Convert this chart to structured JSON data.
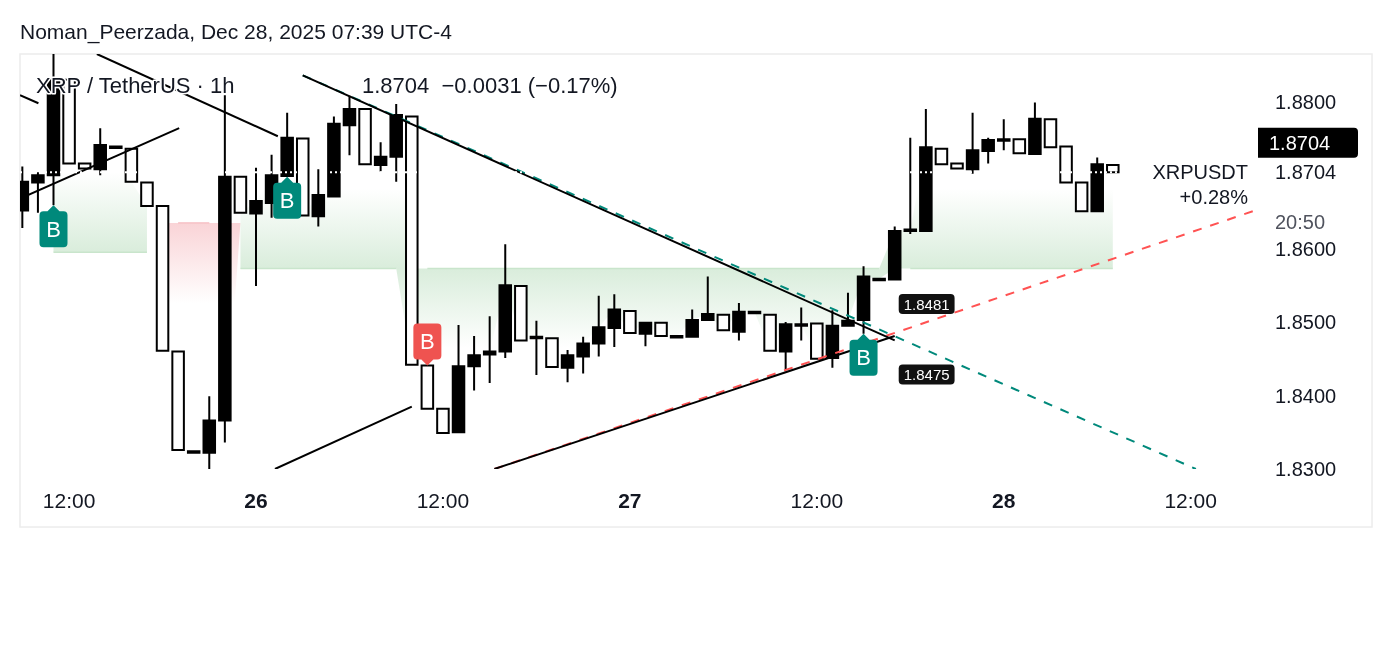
{
  "chart_data": {
    "type": "candlestick",
    "title": "XRP / TetherUS · 1h",
    "subtitle": "1.8704  −0.0031 (−0.17%)",
    "annotations": [
      "Noman_Peerzada, Dec 28, 2025 07:39 UTC-4",
      "XRPUSDT",
      "+0.28%",
      "20:50"
    ],
    "color": "#000000",
    "x": [
      "2025-12-25T09:00",
      "2025-12-25T10:00",
      "2025-12-25T11:00",
      "2025-12-25T12:00",
      "2025-12-25T13:00",
      "2025-12-25T14:00",
      "2025-12-25T15:00",
      "2025-12-25T16:00",
      "2025-12-25T17:00",
      "2025-12-25T18:00",
      "2025-12-25T19:00",
      "2025-12-25T20:00",
      "2025-12-25T21:00",
      "2025-12-25T22:00",
      "2025-12-25T23:00",
      "2025-12-26T00:00",
      "2025-12-26T01:00",
      "2025-12-26T02:00",
      "2025-12-26T03:00",
      "2025-12-26T04:00",
      "2025-12-26T05:00",
      "2025-12-26T06:00",
      "2025-12-26T07:00",
      "2025-12-26T08:00",
      "2025-12-26T09:00",
      "2025-12-26T10:00",
      "2025-12-26T11:00",
      "2025-12-26T12:00",
      "2025-12-26T13:00",
      "2025-12-26T14:00",
      "2025-12-26T15:00",
      "2025-12-26T16:00",
      "2025-12-26T17:00",
      "2025-12-26T18:00",
      "2025-12-26T19:00",
      "2025-12-26T20:00",
      "2025-12-26T21:00",
      "2025-12-26T22:00",
      "2025-12-26T23:00",
      "2025-12-27T00:00",
      "2025-12-27T01:00",
      "2025-12-27T02:00",
      "2025-12-27T03:00",
      "2025-12-27T04:00",
      "2025-12-27T05:00",
      "2025-12-27T06:00",
      "2025-12-27T07:00",
      "2025-12-27T08:00",
      "2025-12-27T09:00",
      "2025-12-27T10:00",
      "2025-12-27T11:00",
      "2025-12-27T12:00",
      "2025-12-27T13:00",
      "2025-12-27T14:00",
      "2025-12-27T15:00",
      "2025-12-27T16:00",
      "2025-12-27T17:00",
      "2025-12-27T18:00",
      "2025-12-27T19:00",
      "2025-12-27T20:00",
      "2025-12-27T21:00",
      "2025-12-27T22:00",
      "2025-12-27T23:00",
      "2025-12-28T00:00",
      "2025-12-28T01:00",
      "2025-12-28T02:00",
      "2025-12-28T03:00",
      "2025-12-28T04:00",
      "2025-12-28T05:00",
      "2025-12-28T06:00",
      "2025-12-28T07:00"
    ],
    "ohlc": [
      [
        1.8652,
        1.8712,
        1.8628,
        1.8691
      ],
      [
        1.869,
        1.8704,
        1.8649,
        1.87
      ],
      [
        1.87,
        1.8865,
        1.8659,
        1.8831
      ],
      [
        1.883,
        1.8831,
        1.8716,
        1.8716
      ],
      [
        1.8716,
        1.8716,
        1.8709,
        1.8709
      ],
      [
        1.8708,
        1.8764,
        1.87,
        1.8741
      ],
      [
        1.8738,
        1.874,
        1.8738,
        1.8739
      ],
      [
        1.8736,
        1.8736,
        1.8691,
        1.8691
      ],
      [
        1.869,
        1.869,
        1.8658,
        1.8658
      ],
      [
        1.8658,
        1.8658,
        1.8461,
        1.8461
      ],
      [
        1.846,
        1.846,
        1.8326,
        1.8326
      ],
      [
        1.8323,
        1.8324,
        1.8323,
        1.8324
      ],
      [
        1.8322,
        1.8399,
        1.83,
        1.8366
      ],
      [
        1.8366,
        1.8809,
        1.8336,
        1.8698
      ],
      [
        1.8698,
        1.8698,
        1.8649,
        1.8649
      ],
      [
        1.8648,
        1.871,
        1.8549,
        1.8665
      ],
      [
        1.8662,
        1.8728,
        1.8642,
        1.87
      ],
      [
        1.8699,
        1.8785,
        1.8698,
        1.8751
      ],
      [
        1.875,
        1.875,
        1.8645,
        1.8645
      ],
      [
        1.8644,
        1.8708,
        1.863,
        1.8673
      ],
      [
        1.8671,
        1.878,
        1.8671,
        1.877
      ],
      [
        1.8768,
        1.8808,
        1.8727,
        1.879
      ],
      [
        1.879,
        1.879,
        1.8715,
        1.8715
      ],
      [
        1.8714,
        1.8745,
        1.8705,
        1.8725
      ],
      [
        1.8725,
        1.8797,
        1.8691,
        1.8782
      ],
      [
        1.878,
        1.878,
        1.8442,
        1.8442
      ],
      [
        1.8441,
        1.8441,
        1.8382,
        1.8382
      ],
      [
        1.8382,
        1.8382,
        1.8349,
        1.8349
      ],
      [
        1.835,
        1.8496,
        1.835,
        1.844
      ],
      [
        1.844,
        1.8481,
        1.8407,
        1.8455
      ],
      [
        1.8456,
        1.8508,
        1.8417,
        1.846
      ],
      [
        1.846,
        1.8606,
        1.8451,
        1.855
      ],
      [
        1.8549,
        1.8549,
        1.8475,
        1.8475
      ],
      [
        1.8479,
        1.8502,
        1.8428,
        1.848
      ],
      [
        1.8478,
        1.8478,
        1.8439,
        1.8439
      ],
      [
        1.8438,
        1.8462,
        1.8418,
        1.8455
      ],
      [
        1.8453,
        1.848,
        1.843,
        1.8471
      ],
      [
        1.8471,
        1.8536,
        1.8453,
        1.8493
      ],
      [
        1.8492,
        1.8538,
        1.8466,
        1.8517
      ],
      [
        1.8515,
        1.8515,
        1.8485,
        1.8485
      ],
      [
        1.8484,
        1.8499,
        1.8467,
        1.8499
      ],
      [
        1.8499,
        1.8499,
        1.8481,
        1.8481
      ],
      [
        1.848,
        1.8481,
        1.848,
        1.8481
      ],
      [
        1.848,
        1.8517,
        1.848,
        1.8503
      ],
      [
        1.8503,
        1.8562,
        1.8503,
        1.8511
      ],
      [
        1.851,
        1.851,
        1.8489,
        1.8489
      ],
      [
        1.8487,
        1.8526,
        1.8475,
        1.8514
      ],
      [
        1.8513,
        1.8514,
        1.8513,
        1.8514
      ],
      [
        1.851,
        1.851,
        1.8461,
        1.8461
      ],
      [
        1.846,
        1.85,
        1.8435,
        1.8497
      ],
      [
        1.8496,
        1.852,
        1.8475,
        1.8497
      ],
      [
        1.8498,
        1.8498,
        1.845,
        1.845
      ],
      [
        1.8451,
        1.8516,
        1.8438,
        1.8495
      ],
      [
        1.8495,
        1.854,
        1.8495,
        1.8502
      ],
      [
        1.8503,
        1.8576,
        1.8484,
        1.8562
      ],
      [
        1.8558,
        1.8559,
        1.8558,
        1.8559
      ],
      [
        1.8558,
        1.863,
        1.8558,
        1.8624
      ],
      [
        1.8625,
        1.8751,
        1.862,
        1.8626
      ],
      [
        1.8624,
        1.879,
        1.8624,
        1.8738
      ],
      [
        1.8736,
        1.8736,
        1.8715,
        1.8715
      ],
      [
        1.8716,
        1.8716,
        1.8709,
        1.8709
      ],
      [
        1.8708,
        1.8785,
        1.8702,
        1.8734
      ],
      [
        1.8733,
        1.8751,
        1.8716,
        1.8748
      ],
      [
        1.8748,
        1.8776,
        1.8734,
        1.8749
      ],
      [
        1.8749,
        1.8749,
        1.873,
        1.873
      ],
      [
        1.8729,
        1.8799,
        1.8729,
        1.8777
      ],
      [
        1.8776,
        1.8776,
        1.8738,
        1.8738
      ],
      [
        1.8739,
        1.8739,
        1.869,
        1.869
      ],
      [
        1.869,
        1.869,
        1.8651,
        1.8651
      ],
      [
        1.8651,
        1.8724,
        1.8651,
        1.8715
      ],
      [
        1.8714,
        1.8715,
        1.8704,
        1.8704
      ]
    ],
    "xlim": [
      "2025-12-25T08:51",
      "2025-12-28T16:00"
    ],
    "xticks": [
      {
        "value": "2025-12-25T12:00",
        "label": "12:00"
      },
      {
        "value": "2025-12-26T00:00",
        "label": "26"
      },
      {
        "value": "2025-12-26T12:00",
        "label": "12:00"
      },
      {
        "value": "2025-12-27T00:00",
        "label": "27"
      },
      {
        "value": "2025-12-27T12:00",
        "label": "12:00"
      },
      {
        "value": "2025-12-28T00:00",
        "label": "28"
      },
      {
        "value": "2025-12-28T12:00",
        "label": "12:00"
      }
    ],
    "ylim": [
      1.83,
      1.8865
    ],
    "yticks": [
      {
        "value": 1.88,
        "label": "1.8800"
      },
      {
        "value": 1.8704,
        "label": "1.8704"
      },
      {
        "value": 1.86,
        "label": "1.8600"
      },
      {
        "value": 1.85,
        "label": "1.8500"
      },
      {
        "value": 1.84,
        "label": "1.8400"
      },
      {
        "value": 1.83,
        "label": "1.8300"
      }
    ],
    "ref_lines": [
      {
        "axis": "y",
        "value": 1.8704,
        "label": "1.8704",
        "color": "#ffffff",
        "line_style": "dotted"
      }
    ],
    "series": [
      {
        "type": "line",
        "color": "#c9e5cc",
        "x": [
          "2025-12-25T11:00",
          "2025-12-25T12:00",
          "2025-12-25T13:00",
          "2025-12-25T14:00",
          "2025-12-25T15:00",
          "2025-12-25T16:00",
          "2025-12-25T17:00"
        ],
        "values": [
          1.8595,
          1.8595,
          1.8595,
          1.8595,
          1.8595,
          1.8595,
          1.8595
        ],
        "lower": [
          1.8595,
          1.8595,
          1.8595,
          1.8595,
          1.8595,
          1.8595,
          1.8595
        ],
        "upper": [
          1.8831,
          1.8716,
          1.8709,
          1.8741,
          1.8739,
          1.8691,
          1.8658
        ]
      },
      {
        "type": "line",
        "color": "#f7c1c5",
        "x": [
          "2025-12-25T18:00",
          "2025-12-25T19:00",
          "2025-12-25T20:00",
          "2025-12-25T21:00",
          "2025-12-25T22:00",
          "2025-12-25T23:00"
        ],
        "values": [
          null,
          1.8635,
          1.8635,
          1.8635,
          null,
          null
        ],
        "lower": [
          1.8461,
          1.8326,
          1.8323,
          1.83,
          1.8336,
          1.8635
        ],
        "upper": [
          1.8635,
          1.8635,
          1.8635,
          1.8635,
          1.8635,
          1.8635
        ]
      },
      {
        "type": "line",
        "color": "#c9e5cc",
        "x": [
          "2025-12-25T23:00",
          "2025-12-26T00:00",
          "2025-12-26T01:00",
          "2025-12-26T02:00",
          "2025-12-26T03:00",
          "2025-12-26T04:00",
          "2025-12-26T05:00",
          "2025-12-26T06:00",
          "2025-12-26T07:00",
          "2025-12-26T08:00",
          "2025-12-26T09:00",
          "2025-12-26T10:00",
          "2025-12-26T11:00",
          "2025-12-26T12:00",
          "2025-12-26T13:00",
          "2025-12-26T14:00",
          "2025-12-26T15:00",
          "2025-12-26T16:00",
          "2025-12-26T17:00",
          "2025-12-26T18:00",
          "2025-12-26T19:00",
          "2025-12-26T20:00",
          "2025-12-26T21:00",
          "2025-12-26T22:00",
          "2025-12-26T23:00",
          "2025-12-27T00:00",
          "2025-12-27T01:00",
          "2025-12-27T02:00",
          "2025-12-27T03:00",
          "2025-12-27T04:00",
          "2025-12-27T05:00",
          "2025-12-27T06:00",
          "2025-12-27T07:00",
          "2025-12-27T08:00",
          "2025-12-27T09:00",
          "2025-12-27T10:00",
          "2025-12-27T11:00",
          "2025-12-27T12:00",
          "2025-12-27T13:00",
          "2025-12-27T14:00",
          "2025-12-27T15:00",
          "2025-12-27T16:00",
          "2025-12-27T17:00",
          "2025-12-27T18:00",
          "2025-12-27T19:00",
          "2025-12-27T20:00",
          "2025-12-27T21:00",
          "2025-12-27T22:00",
          "2025-12-27T23:00",
          "2025-12-28T00:00",
          "2025-12-28T01:00",
          "2025-12-28T02:00",
          "2025-12-28T03:00",
          "2025-12-28T04:00",
          "2025-12-28T05:00",
          "2025-12-28T06:00",
          "2025-12-28T07:00"
        ],
        "values": [
          1.8573,
          1.8573,
          1.8573,
          1.8573,
          1.8573,
          1.8573,
          1.8573,
          1.8573,
          1.8573,
          1.8573,
          1.8573,
          null,
          1.8573,
          1.8573,
          1.8573,
          1.8573,
          1.8573,
          1.8573,
          1.8573,
          1.8573,
          1.8573,
          1.8573,
          1.8573,
          1.8573,
          1.8573,
          1.8573,
          1.8573,
          1.8573,
          1.8573,
          1.8573,
          1.8573,
          1.8573,
          1.8573,
          1.8573,
          1.8573,
          1.8573,
          1.8573,
          1.8573,
          1.8573,
          1.8573,
          1.8573,
          1.8573,
          null,
          1.8573,
          1.8573,
          1.8573,
          1.8573,
          1.8573,
          1.8573,
          1.8573,
          1.8573,
          1.8573,
          1.8573,
          1.8573,
          1.8573,
          1.8573,
          1.8573
        ],
        "lower": [
          1.8573,
          1.8573,
          1.8573,
          1.8573,
          1.8573,
          1.8573,
          1.8573,
          1.8573,
          1.8573,
          1.8573,
          1.8573,
          1.8442,
          1.8382,
          1.8349,
          1.844,
          1.8455,
          1.846,
          1.855,
          1.8475,
          1.848,
          1.8439,
          1.8455,
          1.8471,
          1.8493,
          1.8517,
          1.8485,
          1.8499,
          1.8481,
          1.8481,
          1.8503,
          1.8511,
          1.8489,
          1.8514,
          1.8514,
          1.8461,
          1.8497,
          1.8497,
          1.845,
          1.8495,
          1.8502,
          1.8562,
          1.8559,
          1.8573,
          1.8573,
          1.8573,
          1.8573,
          1.8573,
          1.8573,
          1.8573,
          1.8573,
          1.8573,
          1.8573,
          1.8573,
          1.8573,
          1.8573,
          1.8573,
          1.8573
        ],
        "upper": [
          1.8649,
          1.8665,
          1.87,
          1.8751,
          1.8645,
          1.8673,
          1.877,
          1.879,
          1.8715,
          1.8725,
          1.8782,
          1.8573,
          1.8573,
          1.8573,
          1.8573,
          1.8573,
          1.8573,
          1.8573,
          1.8573,
          1.8573,
          1.8573,
          1.8573,
          1.8573,
          1.8573,
          1.8573,
          1.8573,
          1.8573,
          1.8573,
          1.8573,
          1.8573,
          1.8573,
          1.8573,
          1.8573,
          1.8573,
          1.8573,
          1.8573,
          1.8573,
          1.8573,
          1.8573,
          1.8573,
          1.8573,
          1.8573,
          1.8624,
          1.8626,
          1.8738,
          1.8715,
          1.8709,
          1.8734,
          1.8748,
          1.8749,
          1.873,
          1.8777,
          1.8738,
          1.869,
          1.8651,
          1.8715,
          1.8704
        ]
      },
      {
        "type": "line",
        "color": "#00897b",
        "line_style": "dashed",
        "x": [
          "2025-12-26T03:00",
          "2025-12-28T12:20"
        ],
        "values": [
          1.8836,
          1.83
        ]
      },
      {
        "type": "line",
        "color": "#ff5252",
        "line_style": "dashed",
        "x": [
          "2025-12-26T15:18",
          "2025-12-28T16:00"
        ],
        "values": [
          1.83,
          1.8651
        ]
      },
      {
        "type": "line",
        "color": "#000000",
        "x": [
          "2025-12-25T08:51",
          "2025-12-25T10:02"
        ],
        "values": [
          1.8809,
          1.8798
        ]
      },
      {
        "type": "line",
        "color": "#000000",
        "x": [
          "2025-12-25T08:51",
          "2025-12-25T19:04"
        ],
        "values": [
          1.8668,
          1.8764
        ]
      },
      {
        "type": "line",
        "color": "#000000",
        "x": [
          "2025-12-25T13:47",
          "2025-12-26T01:24"
        ],
        "values": [
          1.8865,
          1.8753
        ]
      },
      {
        "type": "line",
        "color": "#000000",
        "x": [
          "2025-12-26T03:00",
          "2025-12-27T17:00"
        ],
        "values": [
          1.8836,
          1.8475
        ],
        "value_labels": [
          null,
          "1.8475"
        ]
      },
      {
        "type": "line",
        "color": "#000000",
        "x": [
          "2025-12-26T01:13",
          "2025-12-26T10:00"
        ],
        "values": [
          1.83,
          1.8385
        ]
      },
      {
        "type": "line",
        "color": "#000000",
        "x": [
          "2025-12-26T15:18",
          "2025-12-27T17:00"
        ],
        "values": [
          1.83,
          1.8481
        ],
        "value_labels": [
          null,
          "1.8481"
        ]
      },
      {
        "type": "scatter",
        "name": "B",
        "color": "#00897b",
        "marker": "square",
        "x": [
          "2025-12-25T11:00",
          "2025-12-26T02:00",
          "2025-12-27T15:00"
        ],
        "values": [
          1.8659,
          1.8698,
          1.8484
        ]
      },
      {
        "type": "scatter",
        "name": "B",
        "color": "#ef5350",
        "marker": "square",
        "x": [
          "2025-12-26T11:00"
        ],
        "values": [
          1.8441
        ]
      }
    ]
  }
}
